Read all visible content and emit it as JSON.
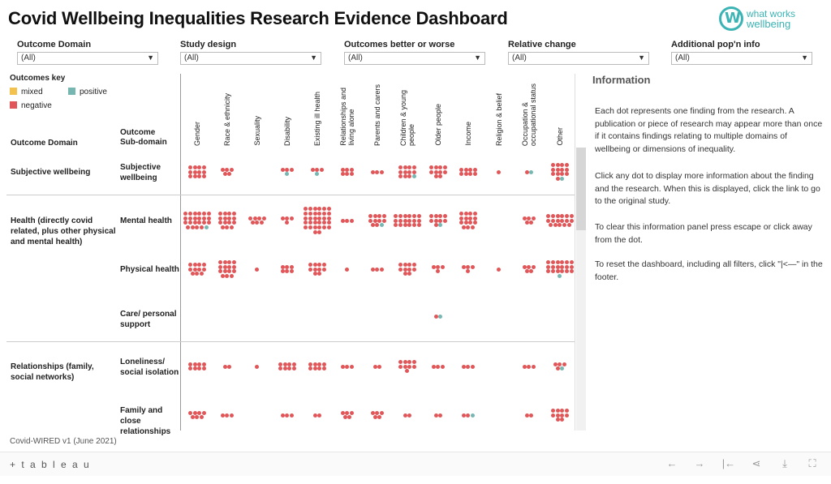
{
  "title": "Covid Wellbeing Inequalities Research Evidence Dashboard",
  "logo": {
    "line1": "what works",
    "line2": "wellbeing"
  },
  "filters": [
    {
      "label": "Outcome Domain",
      "value": "(All)"
    },
    {
      "label": "Study design",
      "value": "(All)"
    },
    {
      "label": "Outcomes better or worse",
      "value": "(All)"
    },
    {
      "label": "Relative change",
      "value": "(All)"
    },
    {
      "label": "Additional pop'n info",
      "value": "(All)"
    }
  ],
  "key": {
    "title": "Outcomes key",
    "mixed": "mixed",
    "positive": "positive",
    "negative": "negative",
    "colors": {
      "mixed": "#f2c14e",
      "positive": "#76b7b2",
      "negative": "#e15759"
    }
  },
  "headers": {
    "domain": "Outcome Domain",
    "subdomain_line1": "Outcome",
    "subdomain_line2": "Sub-domain"
  },
  "columns": [
    "Gender",
    "Race & ethnicity",
    "Sexuality",
    "Disability",
    "Existing ill health",
    "Relationships and\nliving alone",
    "Parents and carers",
    "Children & young\npeople",
    "Older people",
    "Income",
    "Religion & belief",
    "Occupation &\noccupational status",
    "Other"
  ],
  "rows": [
    {
      "domain": "Subjective wellbeing",
      "subdomain": "Subjective wellbeing",
      "cells": [
        [
          12,
          0
        ],
        [
          5,
          0
        ],
        [
          0,
          0
        ],
        [
          3,
          1
        ],
        [
          3,
          1
        ],
        [
          6,
          0
        ],
        [
          3,
          0
        ],
        [
          11,
          1
        ],
        [
          10,
          0
        ],
        [
          8,
          0
        ],
        [
          1,
          0
        ],
        [
          1,
          1
        ],
        [
          13,
          1
        ]
      ]
    },
    {
      "domain": "Health (directly covid related, plus other physical and mental health)",
      "subdomain": "Mental health",
      "cells": [
        [
          22,
          1
        ],
        [
          15,
          0
        ],
        [
          7,
          0
        ],
        [
          4,
          0
        ],
        [
          32,
          0
        ],
        [
          3,
          0
        ],
        [
          10,
          1
        ],
        [
          18,
          0
        ],
        [
          9,
          1
        ],
        [
          15,
          0
        ],
        [
          0,
          0
        ],
        [
          5,
          0
        ],
        [
          17,
          0
        ]
      ]
    },
    {
      "domain": "",
      "subdomain": "Physical health",
      "cells": [
        [
          11,
          0
        ],
        [
          15,
          0
        ],
        [
          1,
          0
        ],
        [
          6,
          0
        ],
        [
          10,
          0
        ],
        [
          1,
          0
        ],
        [
          3,
          0
        ],
        [
          10,
          0
        ],
        [
          4,
          0
        ],
        [
          4,
          0
        ],
        [
          1,
          0
        ],
        [
          5,
          0
        ],
        [
          18,
          1
        ]
      ]
    },
    {
      "domain": "",
      "subdomain": "Care/ personal support",
      "cells": [
        [
          0,
          0
        ],
        [
          0,
          0
        ],
        [
          0,
          0
        ],
        [
          0,
          0
        ],
        [
          0,
          0
        ],
        [
          0,
          0
        ],
        [
          0,
          0
        ],
        [
          0,
          0
        ],
        [
          1,
          1
        ],
        [
          0,
          0
        ],
        [
          0,
          0
        ],
        [
          0,
          0
        ],
        [
          0,
          0
        ]
      ]
    },
    {
      "domain": "Relationships (family, social networks)",
      "subdomain": "Loneliness/ social isolation",
      "cells": [
        [
          8,
          0
        ],
        [
          2,
          0
        ],
        [
          1,
          0
        ],
        [
          8,
          0
        ],
        [
          8,
          0
        ],
        [
          3,
          0
        ],
        [
          2,
          0
        ],
        [
          9,
          0
        ],
        [
          3,
          0
        ],
        [
          3,
          0
        ],
        [
          0,
          0
        ],
        [
          3,
          0
        ],
        [
          4,
          1
        ]
      ]
    },
    {
      "domain": "",
      "subdomain": "Family and close relationships",
      "cells": [
        [
          7,
          0
        ],
        [
          3,
          0
        ],
        [
          0,
          0
        ],
        [
          3,
          0
        ],
        [
          2,
          0
        ],
        [
          5,
          0
        ],
        [
          5,
          0
        ],
        [
          2,
          0
        ],
        [
          2,
          0
        ],
        [
          2,
          1
        ],
        [
          0,
          0
        ],
        [
          2,
          0
        ],
        [
          10,
          0
        ]
      ]
    }
  ],
  "info": {
    "title": "Information",
    "p1": "Each dot represents one finding from the research. A publication or piece of research may appear more than once if it contains findings relating to multiple domains of wellbeing or dimensions of inequality.",
    "p2": "Click any dot to display more information about the finding and the research. When this is displayed, click the link to go to the original study.",
    "p3": "To clear this information panel press escape or click away from the dot.",
    "p4": "To reset the dashboard, including all filters, click  \"|<—\" in the footer."
  },
  "footer": "Covid-WIRED v1 (June 2021)",
  "tableau": {
    "brand": "+ t a b l e a u"
  }
}
